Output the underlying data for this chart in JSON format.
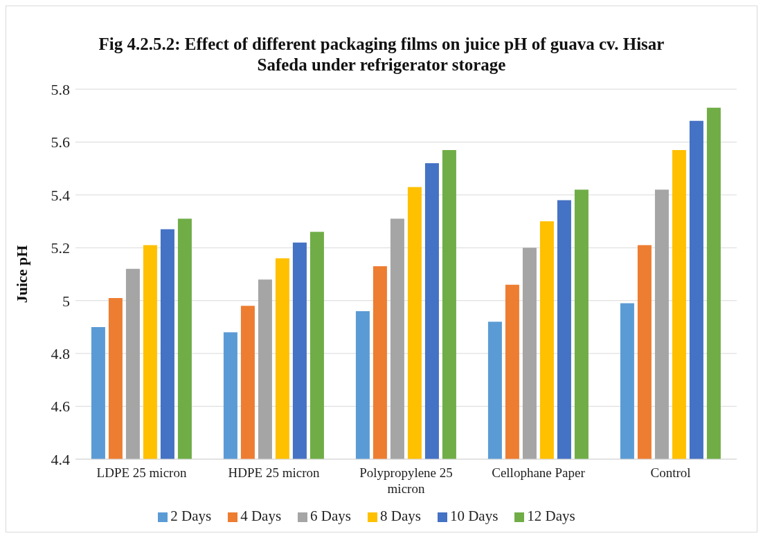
{
  "chart_data": {
    "type": "bar",
    "title": "Fig 4.2.5.2: Effect of different packaging films on juice pH of guava cv. Hisar Safeda under refrigerator storage",
    "ylabel": "Juice pH",
    "categories": [
      "LDPE 25 micron",
      "HDPE 25 micron",
      "Polypropylene 25 micron",
      "Cellophane Paper",
      "Control"
    ],
    "series": [
      {
        "name": "2 Days",
        "color": "#5b9bd5",
        "values": [
          4.9,
          4.88,
          4.96,
          4.92,
          4.99
        ]
      },
      {
        "name": "4 Days",
        "color": "#ed7d31",
        "values": [
          5.01,
          4.98,
          5.13,
          5.06,
          5.21
        ]
      },
      {
        "name": "6 Days",
        "color": "#a5a5a5",
        "values": [
          5.12,
          5.08,
          5.31,
          5.2,
          5.42
        ]
      },
      {
        "name": "8 Days",
        "color": "#ffc000",
        "values": [
          5.21,
          5.16,
          5.43,
          5.3,
          5.57
        ]
      },
      {
        "name": "10 Days",
        "color": "#4472c4",
        "values": [
          5.27,
          5.22,
          5.52,
          5.38,
          5.68
        ]
      },
      {
        "name": "12 Days",
        "color": "#70ad47",
        "values": [
          5.31,
          5.26,
          5.57,
          5.42,
          5.73
        ]
      }
    ],
    "ylim": [
      4.4,
      5.8
    ],
    "yticks": [
      4.4,
      4.6,
      4.8,
      5,
      5.2,
      5.4,
      5.6,
      5.8
    ],
    "grid": "y",
    "legend": "bottom"
  }
}
